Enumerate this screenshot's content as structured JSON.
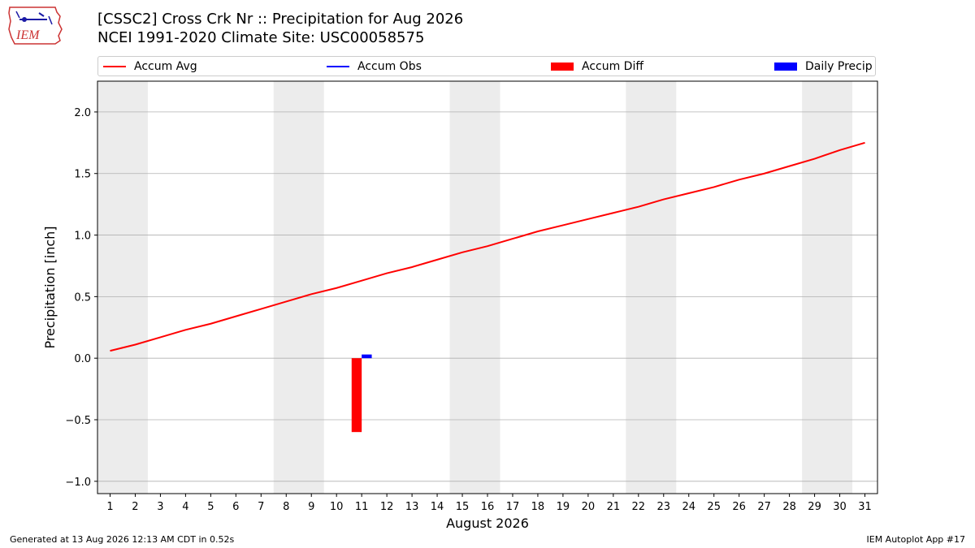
{
  "title_line1": "[CSSC2] Cross Crk Nr :: Precipitation for Aug 2026",
  "title_line2": "NCEI 1991-2020 Climate Site: USC00058575",
  "logo": {
    "text": "IEM",
    "icon": "iem-logo"
  },
  "footer": {
    "left": "Generated at 13 Aug 2026 12:13 AM CDT in 0.52s",
    "right": "IEM Autoplot App #17"
  },
  "colors": {
    "avg": "#ff0000",
    "obs": "#0000ff",
    "diff": "#ff0000",
    "daily": "#0000ff",
    "weekend_band": "#ececec",
    "grid": "#b0b0b0"
  },
  "chart_data": {
    "type": "line",
    "xlabel": "August 2026",
    "ylabel": "Precipitation [inch]",
    "ylim": [
      -1.1,
      2.25
    ],
    "yticks": [
      -1.0,
      -0.5,
      0.0,
      0.5,
      1.0,
      1.5,
      2.0
    ],
    "ytick_labels": [
      "−1.0",
      "−0.5",
      "0.0",
      "0.5",
      "1.0",
      "1.5",
      "2.0"
    ],
    "xlim": [
      0.5,
      31.5
    ],
    "xticks": [
      1,
      2,
      3,
      4,
      5,
      6,
      7,
      8,
      9,
      10,
      11,
      12,
      13,
      14,
      15,
      16,
      17,
      18,
      19,
      20,
      21,
      22,
      23,
      24,
      25,
      26,
      27,
      28,
      29,
      30,
      31
    ],
    "grid": "y",
    "legend_placement": "top",
    "legend": [
      {
        "label": "Accum Avg",
        "kind": "line",
        "color": "#ff0000"
      },
      {
        "label": "Accum Obs",
        "kind": "line",
        "color": "#0000ff"
      },
      {
        "label": "Accum Diff",
        "kind": "bar",
        "color": "#ff0000"
      },
      {
        "label": "Daily Precip",
        "kind": "bar",
        "color": "#0000ff"
      }
    ],
    "weekend_bands": [
      [
        0.5,
        2.5
      ],
      [
        7.5,
        9.5
      ],
      [
        14.5,
        16.5
      ],
      [
        21.5,
        23.5
      ],
      [
        28.5,
        30.5
      ]
    ],
    "series": [
      {
        "name": "Accum Avg",
        "type": "line",
        "x": [
          1,
          2,
          3,
          4,
          5,
          6,
          7,
          8,
          9,
          10,
          11,
          12,
          13,
          14,
          15,
          16,
          17,
          18,
          19,
          20,
          21,
          22,
          23,
          24,
          25,
          26,
          27,
          28,
          29,
          30,
          31
        ],
        "values": [
          0.06,
          0.11,
          0.17,
          0.23,
          0.28,
          0.34,
          0.4,
          0.46,
          0.52,
          0.57,
          0.63,
          0.69,
          0.74,
          0.8,
          0.86,
          0.91,
          0.97,
          1.03,
          1.08,
          1.13,
          1.18,
          1.23,
          1.29,
          1.34,
          1.39,
          1.45,
          1.5,
          1.56,
          1.62,
          1.69,
          1.75
        ]
      },
      {
        "name": "Accum Obs",
        "type": "line",
        "x": [],
        "values": []
      },
      {
        "name": "Accum Diff",
        "type": "bar",
        "x": [
          10.8
        ],
        "values": [
          -0.6
        ]
      },
      {
        "name": "Daily Precip",
        "type": "bar",
        "x": [
          11.2
        ],
        "values": [
          0.03
        ]
      }
    ]
  }
}
